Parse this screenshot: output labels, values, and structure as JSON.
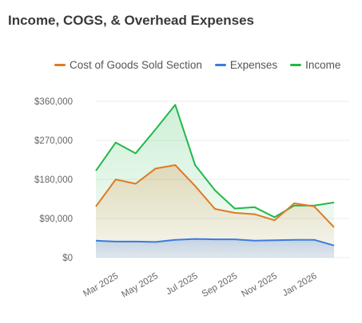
{
  "chart_data": {
    "type": "line",
    "title": "Income, COGS, & Overhead Expenses",
    "legend_position": "top",
    "grid": true,
    "ylim": [
      0,
      360000
    ],
    "y_ticks": [
      {
        "value": 0,
        "label": "$0"
      },
      {
        "value": 90000,
        "label": "$90,000"
      },
      {
        "value": 180000,
        "label": "$180,000"
      },
      {
        "value": 270000,
        "label": "$270,000"
      },
      {
        "value": 360000,
        "label": "$360,000"
      }
    ],
    "x": [
      "Feb 2025",
      "Mar 2025",
      "Apr 2025",
      "May 2025",
      "Jun 2025",
      "Jul 2025",
      "Aug 2025",
      "Sep 2025",
      "Oct 2025",
      "Nov 2025",
      "Dec 2025",
      "Jan 2026",
      "Feb 2026"
    ],
    "x_tick_labels": [
      "Mar 2025",
      "May 2025",
      "Jul 2025",
      "Sep 2025",
      "Nov 2025",
      "Jan 2026"
    ],
    "series": [
      {
        "name": "Cost of Goods Sold Section",
        "color": "#e07a24",
        "fill": true,
        "values": [
          118000,
          180000,
          170000,
          205000,
          213000,
          165000,
          112000,
          103000,
          100000,
          86000,
          125000,
          118000,
          70000
        ]
      },
      {
        "name": "Expenses",
        "color": "#3b7be0",
        "fill": true,
        "values": [
          39000,
          37000,
          37000,
          36000,
          41000,
          43000,
          42000,
          42000,
          39000,
          40000,
          41000,
          41000,
          28000
        ]
      },
      {
        "name": "Income",
        "color": "#22b84a",
        "fill": true,
        "values": [
          200000,
          265000,
          240000,
          295000,
          352000,
          213000,
          155000,
          113000,
          116000,
          93000,
          120000,
          120000,
          127000
        ]
      }
    ]
  }
}
